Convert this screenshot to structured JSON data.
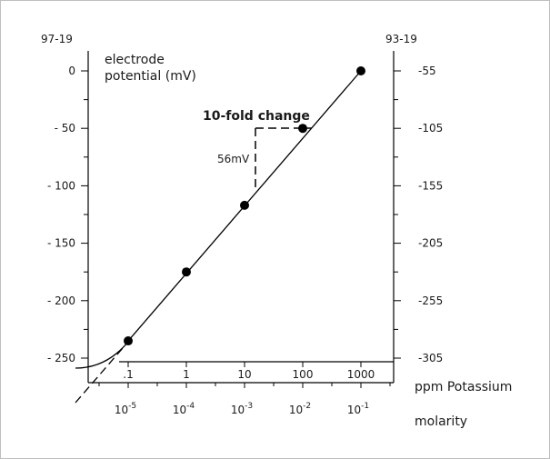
{
  "chart_data": {
    "type": "line",
    "left_axis": {
      "header": "97-19",
      "label_lines": [
        "electrode",
        "potential (mV)"
      ],
      "ticks": [
        0,
        -50,
        -100,
        -150,
        -200,
        -250
      ],
      "tick_labels": [
        "0",
        "- 50",
        "- 100",
        "- 150",
        "- 200",
        "- 250"
      ]
    },
    "right_axis": {
      "header": "93-19",
      "tick_labels": [
        "-55",
        "-105",
        "-155",
        "-205",
        "-255",
        "-305"
      ]
    },
    "ppm_axis": {
      "label": "ppm Potassium",
      "tick_labels": [
        ".1",
        "1",
        "10",
        "100",
        "1000"
      ]
    },
    "molarity_axis": {
      "label": "molarity",
      "mantissa": "10",
      "exponents": [
        "-5",
        "-4",
        "-3",
        "-2",
        "-1"
      ]
    },
    "annotations": {
      "tenfold": "10-fold change",
      "slope": "56mV"
    },
    "series": [
      {
        "x_log_ppm": [
          -1,
          0,
          1,
          2,
          3
        ],
        "y_mV": [
          -235,
          -175,
          -117,
          -50,
          0
        ],
        "markers": true
      }
    ]
  }
}
